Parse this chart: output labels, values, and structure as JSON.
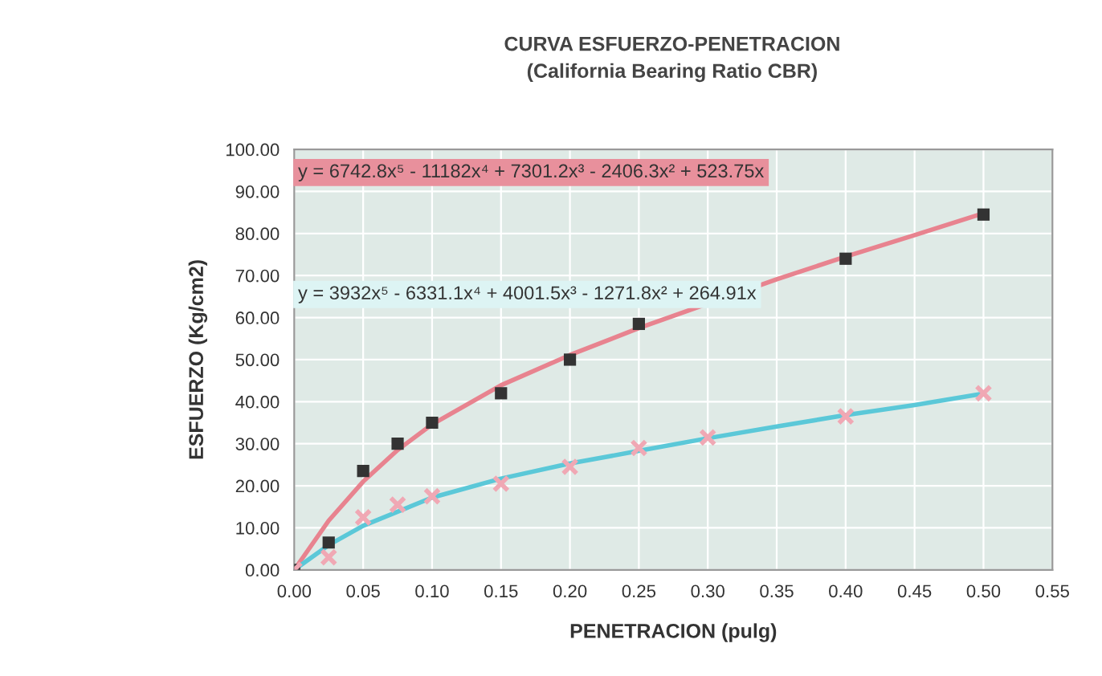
{
  "chart_data": {
    "type": "scatter",
    "title": "CURVA ESFUERZO-PENETRACION",
    "subtitle": "(California Bearing Ratio CBR)",
    "xlabel": "PENETRACION (pulg)",
    "ylabel": "ESFUERZO (Kg/cm2)",
    "annotations": [
      "y = 6742.8x⁵ - 11182x⁴ + 7301.2x³ - 2406.3x² + 523.75x",
      "y = 3932x⁵ - 6331.1x⁴ + 4001.5x³ - 1271.8x² + 264.91x"
    ],
    "series": [
      {
        "marker": "square",
        "color": "#333333",
        "x": [
          0,
          0.025,
          0.05,
          0.075,
          0.1,
          0.15,
          0.2,
          0.25,
          0.4,
          0.5
        ],
        "values": [
          0,
          6.5,
          23.5,
          30,
          35,
          42,
          50,
          58.5,
          74,
          84.5
        ]
      },
      {
        "marker": "cross",
        "color": "#f0a8b4",
        "x": [
          0,
          0.025,
          0.05,
          0.075,
          0.1,
          0.15,
          0.2,
          0.25,
          0.3,
          0.4,
          0.5
        ],
        "values": [
          0,
          3,
          12.5,
          15.5,
          17.5,
          20.5,
          24.5,
          29,
          31.5,
          36.5,
          42
        ]
      },
      {
        "type": "line",
        "marker": "none",
        "color": "#e8838f",
        "x": [
          0,
          0.025,
          0.05,
          0.075,
          0.1,
          0.15,
          0.2,
          0.25,
          0.35,
          0.4,
          0.45,
          0.5
        ],
        "values": [
          0,
          11.7,
          21,
          28.5,
          34.6,
          43.9,
          51.1,
          57.5,
          69.1,
          74.5,
          79.6,
          84.8
        ]
      },
      {
        "type": "line",
        "marker": "none",
        "color": "#5bc8d8",
        "x": [
          0,
          0.025,
          0.05,
          0.1,
          0.15,
          0.2,
          0.25,
          0.3,
          0.35,
          0.4,
          0.45,
          0.5
        ],
        "values": [
          0,
          5.9,
          10.5,
          17.2,
          21.7,
          25.3,
          28.3,
          31.3,
          34.1,
          36.8,
          39.2,
          41.9
        ]
      }
    ],
    "xlim": [
      0,
      0.55
    ],
    "xticks": [
      {
        "value": 0,
        "label": "0.00"
      },
      {
        "value": 0.05,
        "label": "0.05"
      },
      {
        "value": 0.1,
        "label": "0.10"
      },
      {
        "value": 0.15,
        "label": "0.15"
      },
      {
        "value": 0.2,
        "label": "0.20"
      },
      {
        "value": 0.25,
        "label": "0.25"
      },
      {
        "value": 0.3,
        "label": "0.30"
      },
      {
        "value": 0.35,
        "label": "0.35"
      },
      {
        "value": 0.4,
        "label": "0.40"
      },
      {
        "value": 0.45,
        "label": "0.45"
      },
      {
        "value": 0.5,
        "label": "0.50"
      },
      {
        "value": 0.55,
        "label": "0.55"
      }
    ],
    "ylim": [
      0,
      100
    ],
    "yticks": [
      {
        "value": 0,
        "label": "0.00"
      },
      {
        "value": 10,
        "label": "10.00"
      },
      {
        "value": 20,
        "label": "20.00"
      },
      {
        "value": 30,
        "label": "30.00"
      },
      {
        "value": 40,
        "label": "40.00"
      },
      {
        "value": 50,
        "label": "50.00"
      },
      {
        "value": 60,
        "label": "60.00"
      },
      {
        "value": 70,
        "label": "70.00"
      },
      {
        "value": 80,
        "label": "80.00"
      },
      {
        "value": 90,
        "label": "90.00"
      },
      {
        "value": 100,
        "label": "100.00"
      }
    ],
    "grid": true
  }
}
